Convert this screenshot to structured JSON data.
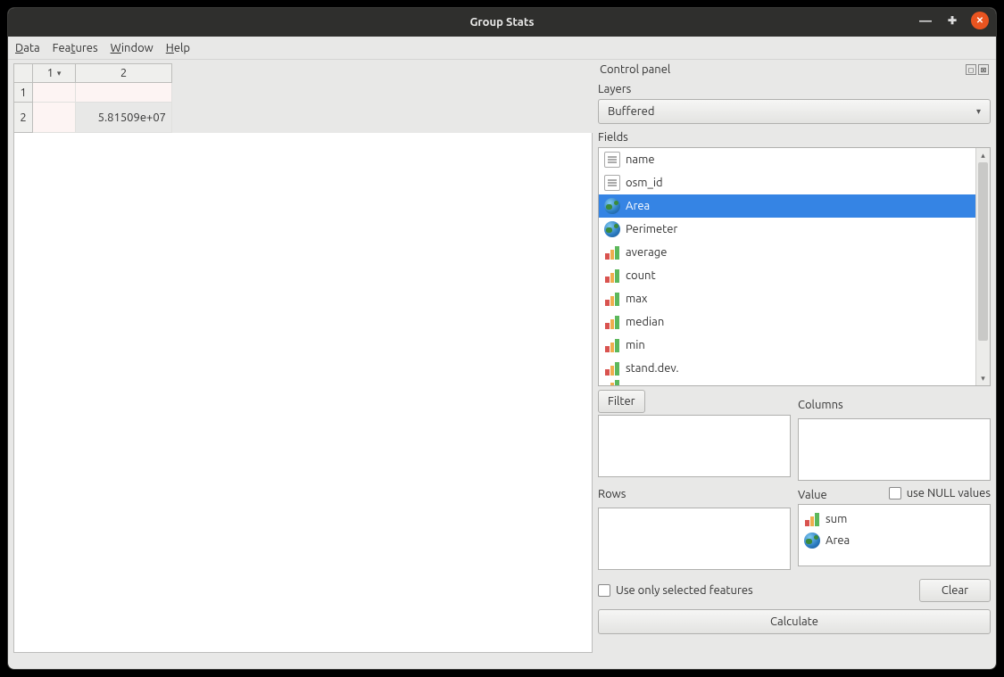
{
  "window": {
    "title": "Group Stats"
  },
  "menus": [
    "Data",
    "Features",
    "Window",
    "Help"
  ],
  "menu_underline_index": [
    0,
    3,
    0,
    0
  ],
  "result_table": {
    "col_headers": [
      "1",
      "2"
    ],
    "row_headers": [
      "1",
      "2"
    ],
    "rows": [
      [
        "",
        ""
      ],
      [
        "",
        "5.81509e+07"
      ]
    ]
  },
  "control_panel": {
    "title": "Control panel",
    "layers_label": "Layers",
    "layers_value": "Buffered",
    "fields_label": "Fields",
    "fields": [
      {
        "label": "name",
        "icon": "text",
        "selected": false
      },
      {
        "label": "osm_id",
        "icon": "text",
        "selected": false
      },
      {
        "label": "Area",
        "icon": "globe",
        "selected": true
      },
      {
        "label": "Perimeter",
        "icon": "globe",
        "selected": false
      },
      {
        "label": "average",
        "icon": "bars",
        "selected": false
      },
      {
        "label": "count",
        "icon": "bars",
        "selected": false
      },
      {
        "label": "max",
        "icon": "bars",
        "selected": false
      },
      {
        "label": "median",
        "icon": "bars",
        "selected": false
      },
      {
        "label": "min",
        "icon": "bars",
        "selected": false
      },
      {
        "label": "stand.dev.",
        "icon": "bars",
        "selected": false
      }
    ],
    "filter_btn": "Filter",
    "columns_label": "Columns",
    "rows_label": "Rows",
    "value_label": "Value",
    "use_null_label": "use NULL values",
    "use_null_checked": false,
    "value_items": [
      {
        "label": "sum",
        "icon": "bars"
      },
      {
        "label": "Area",
        "icon": "globe"
      }
    ],
    "use_selected_label": "Use only selected features",
    "use_selected_checked": false,
    "clear_btn": "Clear",
    "calculate_btn": "Calculate"
  }
}
